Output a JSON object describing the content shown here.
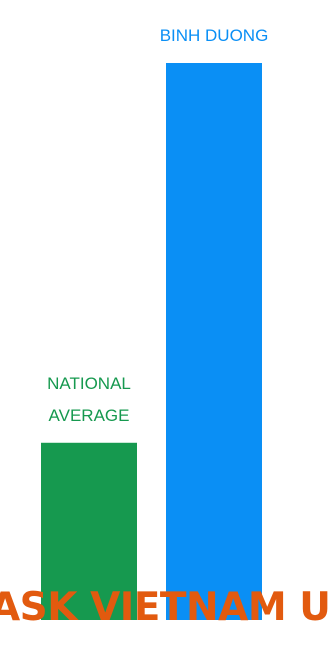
{
  "chart_data": {
    "type": "bar",
    "categories": [
      "NATIONAL AVERAGE",
      "BINH DUONG"
    ],
    "category_lines": [
      [
        "NATIONAL",
        "AVERAGE"
      ],
      [
        "BINH DUONG"
      ]
    ],
    "values": [
      28,
      88
    ],
    "colors": [
      "#16994f",
      "#0a8ff5"
    ],
    "label_colors": [
      "#16994f",
      "#0a8ff5"
    ],
    "ylim": [
      0,
      100
    ],
    "title": "",
    "xlabel": "",
    "ylabel": "",
    "grid": false,
    "legend": "none"
  },
  "watermark": {
    "text": "ASK VIETNAM U"
  }
}
